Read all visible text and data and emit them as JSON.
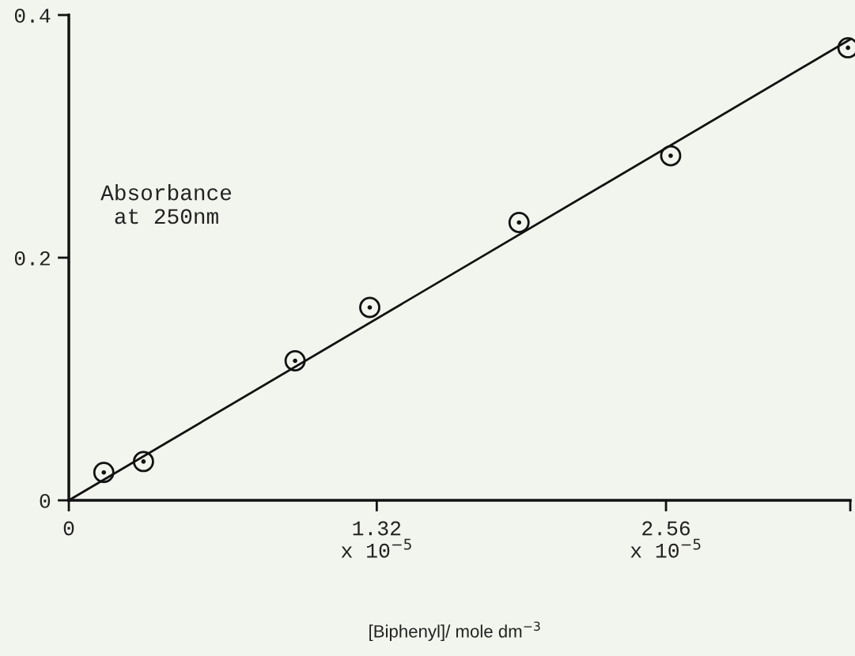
{
  "chart_data": {
    "type": "scatter",
    "xlabel": "[Biphenyl]/ mole dm$^{−3}$",
    "ylabel": "Absorbance\nat 250nm",
    "xlim": [
      0,
      3.35e-05
    ],
    "ylim": [
      0,
      0.4
    ],
    "xticks": [
      0,
      {
        "value": 1.32e-05,
        "label": "1.32\nx 10$^{−5}$"
      },
      {
        "value": 2.56e-05,
        "label": "2.56\nx 10$^{−5}$"
      },
      {
        "value": 3.35e-05,
        "label": null
      }
    ],
    "yticks": [
      0,
      0.2,
      0.4
    ],
    "series": [
      {
        "color": "#111111",
        "marker": "circle",
        "x": [
          1.5e-06,
          3.2e-06,
          9.7e-06,
          1.29e-05,
          1.93e-05,
          2.58e-05,
          3.34e-05
        ],
        "values": [
          0.023,
          0.032,
          0.115,
          0.159,
          0.229,
          0.284,
          0.373
        ]
      },
      {
        "type": "line",
        "color": "#111111",
        "marker": "none",
        "line_style": "solid",
        "x": [
          0,
          3.35e-05
        ],
        "values": [
          0,
          0.38
        ]
      }
    ]
  }
}
